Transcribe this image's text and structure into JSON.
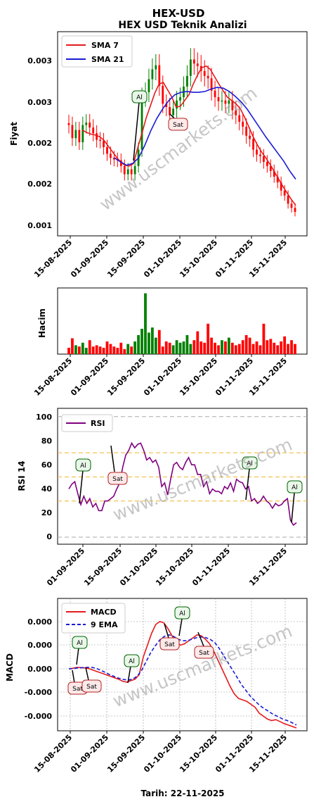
{
  "title": "HEX-USD",
  "subtitle": "HEX USD Teknik Analizi",
  "footer": "Tarih: 22-11-2025",
  "watermark": "www.uscmarkets.com",
  "colors": {
    "up": "#008000",
    "down": "#ff0000",
    "sma7": "#e41a1c",
    "sma21": "#1a1ad6",
    "rsi": "#800080",
    "macd": "#e41a1c",
    "signal": "#1a1ad6",
    "buy": "#006400",
    "sell": "#b22222"
  },
  "chart_data": [
    {
      "type": "line",
      "name": "price",
      "ylabel": "Fiyat",
      "yticks": [
        "0.001",
        "0.002",
        "0.002",
        "0.003",
        "0.003"
      ],
      "xticks": [
        "15-08-2025",
        "01-09-2025",
        "15-09-2025",
        "01-10-2025",
        "15-10-2025",
        "01-11-2025",
        "15-11-2025"
      ],
      "legend": [
        "SMA 7",
        "SMA 21"
      ],
      "annotations": [
        {
          "label": "Al",
          "x": "2025-09-16"
        },
        {
          "label": "Sat",
          "x": "2025-10-03"
        }
      ],
      "close_trend": [
        0.00228,
        0.00212,
        0.00222,
        0.00207,
        0.00228,
        0.00231,
        0.00225,
        0.00218,
        0.0021,
        0.00209,
        0.00201,
        0.00193,
        0.00188,
        0.00186,
        0.00185,
        0.00178,
        0.00168,
        0.00174,
        0.00168,
        0.00178,
        0.00198,
        0.00262,
        0.00268,
        0.00284,
        0.00296,
        0.00301,
        0.00276,
        0.00254,
        0.0025,
        0.0024,
        0.00248,
        0.00258,
        0.00262,
        0.00275,
        0.00288,
        0.00308,
        0.00303,
        0.003,
        0.00294,
        0.00288,
        0.00285,
        0.0027,
        0.00262,
        0.00257,
        0.00258,
        0.00254,
        0.00258,
        0.00246,
        0.0024,
        0.00232,
        0.00226,
        0.00215,
        0.00211,
        0.00198,
        0.00192,
        0.0019,
        0.00183,
        0.00178,
        0.00172,
        0.00165,
        0.00158,
        0.00148,
        0.00142,
        0.00132,
        0.00127,
        0.00122
      ],
      "sma7": [
        0.00222,
        0.00219,
        0.00217,
        0.00216,
        0.00214,
        0.0021,
        0.00203,
        0.00196,
        0.00189,
        0.00183,
        0.00179,
        0.00178,
        0.00181,
        0.002,
        0.00218,
        0.00237,
        0.00252,
        0.00267,
        0.00278,
        0.0028,
        0.00271,
        0.00262,
        0.0025,
        0.00251,
        0.00258,
        0.00265,
        0.00278,
        0.00289,
        0.00298,
        0.003,
        0.00296,
        0.00287,
        0.00278,
        0.0027,
        0.00262,
        0.00258,
        0.00254,
        0.00248,
        0.00238,
        0.00226,
        0.00214,
        0.00204,
        0.00195,
        0.00188,
        0.0018,
        0.00171,
        0.00162,
        0.00153,
        0.00145,
        0.00137,
        0.0013
      ],
      "sma21": [
        0.00188,
        0.00183,
        0.00179,
        0.00181,
        0.00188,
        0.00203,
        0.00221,
        0.00236,
        0.00248,
        0.00258,
        0.00265,
        0.00268,
        0.00269,
        0.00268,
        0.00268,
        0.00269,
        0.00272,
        0.00274,
        0.00273,
        0.00269,
        0.00263,
        0.00256,
        0.00247,
        0.00236,
        0.00225,
        0.00214,
        0.00204,
        0.00194,
        0.00184,
        0.00172,
        0.00162
      ]
    },
    {
      "type": "bar",
      "name": "volume",
      "ylabel": "Hacim",
      "xticks": [
        "15-08-2025",
        "01-09-2025",
        "15-09-2025",
        "01-10-2025",
        "15-10-2025",
        "01-11-2025",
        "15-11-2025"
      ],
      "values": [
        0.1,
        0.25,
        0.14,
        0.12,
        0.18,
        0.1,
        0.22,
        0.12,
        0.14,
        0.12,
        0.1,
        0.2,
        0.16,
        0.12,
        0.1,
        0.18,
        0.08,
        0.16,
        0.12,
        0.2,
        0.3,
        0.4,
        0.96,
        0.34,
        0.42,
        0.26,
        0.38,
        0.12,
        0.2,
        0.18,
        0.14,
        0.22,
        0.18,
        0.2,
        0.3,
        0.16,
        0.22,
        0.36,
        0.2,
        0.18,
        0.48,
        0.26,
        0.18,
        0.14,
        0.22,
        0.2,
        0.26,
        0.18,
        0.14,
        0.16,
        0.22,
        0.3,
        0.26,
        0.16,
        0.2,
        0.14,
        0.48,
        0.22,
        0.24,
        0.18,
        0.14,
        0.2,
        0.28,
        0.16,
        0.22,
        0.16
      ]
    },
    {
      "type": "line",
      "name": "rsi",
      "ylabel": "RSI 14",
      "ylim": [
        0,
        100
      ],
      "yticks": [
        "0",
        "20",
        "40",
        "60",
        "80",
        "100"
      ],
      "xticks": [
        "01-09-2025",
        "15-09-2025",
        "01-10-2025",
        "15-10-2025",
        "01-11-2025",
        "15-11-2025"
      ],
      "legend": [
        "RSI"
      ],
      "levels": [
        30,
        50,
        70
      ],
      "annotations": [
        {
          "label": "Al",
          "x": "2025-08-31"
        },
        {
          "label": "Sat",
          "x": "2025-09-12"
        },
        {
          "label": "Al",
          "x": "2025-11-02"
        },
        {
          "label": "Al",
          "x": "2025-11-20"
        }
      ],
      "values": [
        40,
        44,
        46,
        36,
        27,
        34,
        28,
        32,
        25,
        28,
        22,
        22,
        30,
        30,
        32,
        34,
        40,
        45,
        58,
        68,
        72,
        78,
        74,
        77,
        78,
        72,
        64,
        66,
        62,
        64,
        58,
        42,
        45,
        35,
        48,
        60,
        62,
        58,
        56,
        62,
        66,
        60,
        60,
        52,
        52,
        42,
        46,
        36,
        40,
        38,
        38,
        36,
        42,
        40,
        45,
        38,
        48,
        46,
        45,
        40,
        42,
        30,
        32,
        28,
        30,
        34,
        30,
        28,
        24,
        28,
        26,
        27,
        30,
        32,
        14,
        10,
        12
      ]
    },
    {
      "type": "line",
      "name": "macd",
      "ylabel": "MACD",
      "xlabel": "Tarih: 22-11-2025",
      "yticks": [
        "-0.000",
        "-0.000",
        "0.000",
        "0.000",
        "0.000"
      ],
      "xticks": [
        "15-08-2025",
        "01-09-2025",
        "15-09-2025",
        "01-10-2025",
        "15-10-2025",
        "01-11-2025",
        "15-11-2025"
      ],
      "legend": [
        "MACD",
        "9 EMA"
      ],
      "annotations": [
        {
          "label": "Sat",
          "x": "2025-08-17"
        },
        {
          "label": "Al",
          "x": "2025-08-18"
        },
        {
          "label": "Sat",
          "x": "2025-08-22"
        },
        {
          "label": "Al",
          "x": "2025-09-11"
        },
        {
          "label": "Sat",
          "x": "2025-09-28"
        },
        {
          "label": "Al",
          "x": "2025-10-01"
        },
        {
          "label": "Sat",
          "x": "2025-10-09"
        }
      ],
      "macd": [
        0,
        0.02,
        0.05,
        0.04,
        0.03,
        0.0,
        -0.05,
        -0.1,
        -0.15,
        -0.2,
        -0.25,
        -0.3,
        -0.35,
        -0.42,
        -0.45,
        -0.4,
        -0.35,
        -0.2,
        0.4,
        0.8,
        1.2,
        1.5,
        1.6,
        1.55,
        1.35,
        1.1,
        0.9,
        0.8,
        0.85,
        0.95,
        1.05,
        1.15,
        1.12,
        1.0,
        0.85,
        0.6,
        0.3,
        0.0,
        -0.3,
        -0.6,
        -0.85,
        -1.0,
        -1.05,
        -1.1,
        -1.2,
        -1.3,
        -1.5,
        -1.6,
        -1.7,
        -1.75,
        -1.72,
        -1.78,
        -1.85,
        -1.9,
        -1.95,
        -2.0
      ],
      "signal": [
        0,
        0.01,
        0.03,
        0.04,
        0.05,
        0.05,
        0.02,
        -0.05,
        -0.12,
        -0.2,
        -0.26,
        -0.32,
        -0.36,
        -0.38,
        -0.35,
        -0.25,
        -0.05,
        0.25,
        0.55,
        0.78,
        0.98,
        1.1,
        1.15,
        1.1,
        1.0,
        0.95,
        0.95,
        1.0,
        1.05,
        1.08,
        1.06,
        1.0,
        0.9,
        0.7,
        0.45,
        0.2,
        -0.05,
        -0.3,
        -0.55,
        -0.75,
        -0.95,
        -1.1,
        -1.25,
        -1.35,
        -1.45,
        -1.55,
        -1.62,
        -1.7,
        -1.75,
        -1.82,
        -1.9
      ]
    }
  ]
}
